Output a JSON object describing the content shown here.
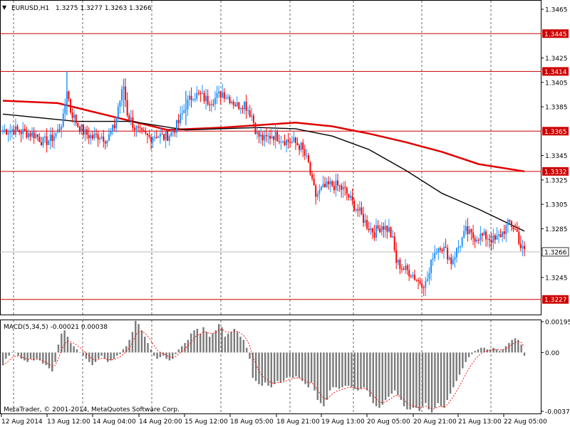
{
  "header": {
    "symbol_label": "EURUSD,H1",
    "ohlc": "1.3275 1.3277 1.3263 1.3266",
    "arrow_glyph": "▼"
  },
  "footer": {
    "copyright": "MetaTrader, © 2001-2014, MetaQuotes Software Corp."
  },
  "colors": {
    "bull": "#1e90ff",
    "bear": "#ff0000",
    "ma_fast": "#000000",
    "ma_slow": "#e00000",
    "macd_bar": "#7a7a7a",
    "macd_signal": "#ff0000",
    "level": "#cc0000"
  },
  "chart_data": {
    "type": "candlestick",
    "symbol": "EURUSD",
    "timeframe": "H1",
    "price_axis": {
      "range": [
        1.3214,
        1.3472
      ],
      "ticks": [
        "1.3465",
        "1.3425",
        "1.3405",
        "1.3385",
        "1.3345",
        "1.3325",
        "1.3305",
        "1.3285",
        "1.3245"
      ]
    },
    "level_lines": [
      {
        "price": 1.3445,
        "label": "1.3445"
      },
      {
        "price": 1.3414,
        "label": "1.3414"
      },
      {
        "price": 1.3365,
        "label": "1.3365"
      },
      {
        "price": 1.3332,
        "label": "1.3332"
      },
      {
        "price": 1.3227,
        "label": "1.3227"
      }
    ],
    "current_price": {
      "price": 1.3266,
      "label": "1.3266"
    },
    "time_labels": [
      "12 Aug 2014",
      "13 Aug 12:00",
      "14 Aug 04:00",
      "14 Aug 20:00",
      "15 Aug 12:00",
      "18 Aug 05:00",
      "18 Aug 21:00",
      "19 Aug 13:00",
      "20 Aug 05:00",
      "20 Aug 21:00",
      "21 Aug 13:00",
      "22 Aug 05:00"
    ],
    "close_path": [
      [
        0,
        1.3366
      ],
      [
        6,
        1.3366
      ],
      [
        12,
        1.3364
      ],
      [
        18,
        1.3362
      ],
      [
        22,
        1.3356
      ],
      [
        26,
        1.3358
      ],
      [
        30,
        1.3365
      ],
      [
        33,
        1.3375
      ],
      [
        35,
        1.34
      ],
      [
        37,
        1.3382
      ],
      [
        41,
        1.337
      ],
      [
        45,
        1.3363
      ],
      [
        49,
        1.336
      ],
      [
        53,
        1.3362
      ],
      [
        57,
        1.3358
      ],
      [
        61,
        1.3369
      ],
      [
        63,
        1.3385
      ],
      [
        66,
        1.3402
      ],
      [
        68,
        1.338
      ],
      [
        72,
        1.3368
      ],
      [
        76,
        1.3362
      ],
      [
        80,
        1.336
      ],
      [
        84,
        1.3362
      ],
      [
        88,
        1.336
      ],
      [
        92,
        1.3363
      ],
      [
        96,
        1.3372
      ],
      [
        100,
        1.3386
      ],
      [
        104,
        1.3395
      ],
      [
        108,
        1.3394
      ],
      [
        112,
        1.339
      ],
      [
        116,
        1.3392
      ],
      [
        120,
        1.3397
      ],
      [
        124,
        1.3392
      ],
      [
        128,
        1.3386
      ],
      [
        132,
        1.3388
      ],
      [
        136,
        1.3378
      ],
      [
        139,
        1.3362
      ],
      [
        143,
        1.3358
      ],
      [
        147,
        1.3362
      ],
      [
        151,
        1.336
      ],
      [
        155,
        1.3357
      ],
      [
        159,
        1.3356
      ],
      [
        163,
        1.3352
      ],
      [
        165,
        1.3345
      ],
      [
        167,
        1.3338
      ],
      [
        169,
        1.3322
      ],
      [
        171,
        1.3312
      ],
      [
        175,
        1.3318
      ],
      [
        179,
        1.3321
      ],
      [
        183,
        1.332
      ],
      [
        187,
        1.3316
      ],
      [
        191,
        1.3306
      ],
      [
        195,
        1.3298
      ],
      [
        199,
        1.3288
      ],
      [
        203,
        1.3282
      ],
      [
        207,
        1.3288
      ],
      [
        211,
        1.3284
      ],
      [
        213,
        1.3275
      ],
      [
        215,
        1.3258
      ],
      [
        219,
        1.3252
      ],
      [
        223,
        1.3249
      ],
      [
        227,
        1.3242
      ],
      [
        231,
        1.324
      ],
      [
        233,
        1.3248
      ],
      [
        235,
        1.3264
      ],
      [
        239,
        1.3272
      ],
      [
        243,
        1.3264
      ],
      [
        245,
        1.3258
      ],
      [
        249,
        1.327
      ],
      [
        253,
        1.3283
      ],
      [
        257,
        1.3278
      ],
      [
        261,
        1.3279
      ],
      [
        265,
        1.3278
      ],
      [
        269,
        1.3275
      ],
      [
        273,
        1.3282
      ],
      [
        277,
        1.329
      ],
      [
        281,
        1.3282
      ],
      [
        283,
        1.327
      ],
      [
        285,
        1.3266
      ]
    ],
    "ma_fast": [
      [
        0,
        1.3379
      ],
      [
        40,
        1.3373
      ],
      [
        70,
        1.3373
      ],
      [
        100,
        1.3366
      ],
      [
        140,
        1.3368
      ],
      [
        160,
        1.3367
      ],
      [
        180,
        1.3361
      ],
      [
        200,
        1.335
      ],
      [
        220,
        1.3333
      ],
      [
        240,
        1.3314
      ],
      [
        260,
        1.3301
      ],
      [
        285,
        1.3283
      ]
    ],
    "ma_slow": [
      [
        0,
        1.339
      ],
      [
        30,
        1.3388
      ],
      [
        60,
        1.3377
      ],
      [
        90,
        1.3366
      ],
      [
        120,
        1.3368
      ],
      [
        160,
        1.3372
      ],
      [
        180,
        1.3369
      ],
      [
        200,
        1.3363
      ],
      [
        220,
        1.3356
      ],
      [
        240,
        1.3348
      ],
      [
        260,
        1.3338
      ],
      [
        285,
        1.3332
      ]
    ],
    "macd": {
      "label": "MACD(5,34,5) -0.00021 0.00038",
      "range": [
        -0.00372,
        0.00195
      ],
      "ticks": [
        "0.00195",
        "0.00",
        "-0.00372"
      ],
      "values": [
        -0.0008,
        -0.0004,
        -0.0002,
        0.0,
        0.0,
        -0.0002,
        -0.0004,
        -0.0005,
        -0.0006,
        -0.0004,
        -0.0005,
        -0.0004,
        -0.0005,
        -0.0007,
        -0.0008,
        -0.001,
        -0.0012,
        -0.0006,
        0.0005,
        0.0012,
        0.0014,
        0.001,
        0.0006,
        0.0004,
        0.0002,
        0.0,
        -0.0002,
        -0.0004,
        -0.0006,
        -0.0008,
        -0.0006,
        -0.0004,
        -0.0002,
        -0.0004,
        -0.0006,
        -0.0005,
        -0.0004,
        -0.0002,
        -0.0001,
        0.0002,
        0.0004,
        0.0008,
        0.0013,
        0.002,
        0.0018,
        0.0014,
        0.001,
        0.0006,
        0.0002,
        -0.0002,
        -0.0004,
        -0.0003,
        -0.0002,
        -0.0004,
        -0.0005,
        -0.0004,
        -0.0001,
        0.0002,
        0.0004,
        0.0006,
        0.0008,
        0.0012,
        0.0014,
        0.0015,
        0.0012,
        0.0016,
        0.0013,
        0.001,
        0.0012,
        0.0014,
        0.0018,
        0.0016,
        0.001,
        0.0012,
        0.0013,
        0.0015,
        0.0013,
        0.001,
        0.0008,
        0.0003,
        -0.0004,
        -0.0016,
        -0.0018,
        -0.002,
        -0.0021,
        -0.0019,
        -0.0021,
        -0.0022,
        -0.002,
        -0.0018,
        -0.0019,
        -0.0018,
        -0.0016,
        -0.0015,
        -0.0016,
        -0.0015,
        -0.0016,
        -0.0018,
        -0.002,
        -0.0022,
        -0.0019,
        -0.0024,
        -0.003,
        -0.0032,
        -0.0034,
        -0.003,
        -0.0024,
        -0.0022,
        -0.0022,
        -0.0023,
        -0.0022,
        -0.0021,
        -0.0021,
        -0.0022,
        -0.0023,
        -0.0024,
        -0.0023,
        -0.0022,
        -0.0024,
        -0.0028,
        -0.0032,
        -0.0034,
        -0.0035,
        -0.0033,
        -0.003,
        -0.0028,
        -0.0026,
        -0.0024,
        -0.0027,
        -0.003,
        -0.0034,
        -0.0036,
        -0.0036,
        -0.0035,
        -0.0035,
        -0.0037,
        -0.0034,
        -0.0032,
        -0.0036,
        -0.0038,
        -0.0035,
        -0.0032,
        -0.0034,
        -0.0035,
        -0.003,
        -0.0026,
        -0.0022,
        -0.0018,
        -0.0014,
        -0.001,
        -0.0006,
        -0.0003,
        -0.0001,
        0.0001,
        0.0002,
        0.0003,
        0.0003,
        0.0002,
        0.0002,
        0.0003,
        0.0002,
        0.0001,
        0.0002,
        0.0004,
        0.0006,
        0.0008,
        0.0009,
        0.0008,
        0.0005,
        -0.0002
      ]
    }
  }
}
